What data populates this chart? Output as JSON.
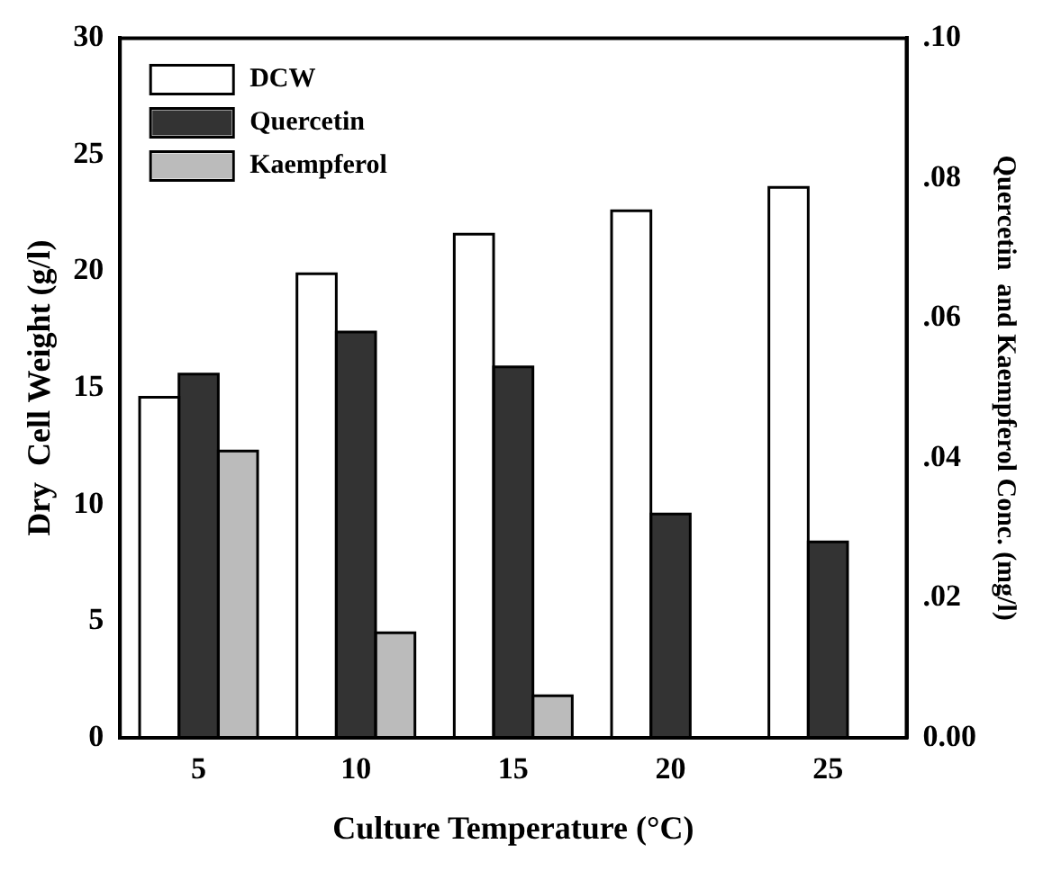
{
  "chart_data": {
    "type": "bar",
    "xlabel": "Culture Temperature (°C)",
    "ylabel": "Dry  Cell Weight (g/l)",
    "y2label": "Quercetin  and Kaempferol Conc. (mg/l)",
    "categories": [
      "5",
      "10",
      "15",
      "20",
      "25"
    ],
    "series": [
      {
        "name": "DCW",
        "color": "#ffffff",
        "values": [
          14.6,
          19.9,
          21.6,
          22.6,
          23.6
        ]
      },
      {
        "name": "Quercetin",
        "color": "#333333",
        "axis": "y2",
        "values": [
          0.052,
          0.058,
          0.053,
          0.032,
          0.028
        ]
      },
      {
        "name": "Kaempferol",
        "color": "#bbbbbb",
        "axis": "y2",
        "values": [
          0.041,
          0.015,
          0.006,
          null,
          null
        ]
      }
    ],
    "ylim": [
      0,
      30
    ],
    "yticks": [
      0,
      5,
      10,
      15,
      20,
      25,
      30
    ],
    "y2lim": [
      0,
      0.1
    ],
    "y2ticks": [
      {
        "value": 0,
        "label": "0.00"
      },
      {
        "value": 0.02,
        "label": ".02"
      },
      {
        "value": 0.04,
        "label": ".04"
      },
      {
        "value": 0.06,
        "label": ".06"
      },
      {
        "value": 0.08,
        "label": ".08"
      },
      {
        "value": 0.1,
        "label": ".10"
      }
    ],
    "grid": false,
    "legend": "top left"
  }
}
